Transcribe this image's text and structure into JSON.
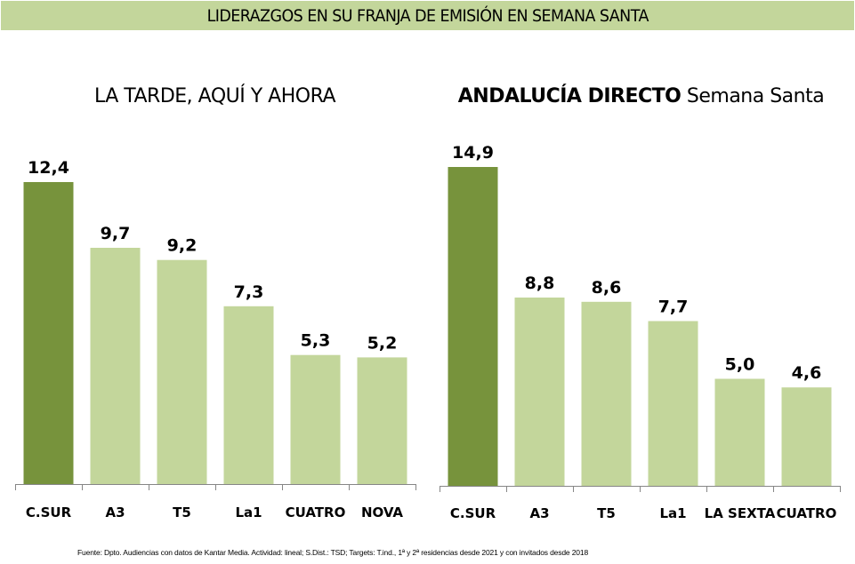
{
  "header": {
    "title": "LIDERAZGOS EN SU FRANJA DE EMISIÓN EN SEMANA SANTA"
  },
  "colors": {
    "banner": "#C3D69B",
    "highlight_bar": "#77933C",
    "other_bar": "#C3D69B",
    "axis": "#868686"
  },
  "chart_data": [
    {
      "type": "bar",
      "title": "LA TARDE, AQUÍ Y AHORA",
      "categories": [
        "C.SUR",
        "A3",
        "T5",
        "La1",
        "CUATRO",
        "NOVA"
      ],
      "values": [
        12.4,
        9.7,
        9.2,
        7.3,
        5.3,
        5.2
      ],
      "value_labels": [
        "12,4",
        "9,7",
        "9,2",
        "7,3",
        "5,3",
        "5,2"
      ],
      "highlight_index": 0,
      "xlabel": "",
      "ylabel": "",
      "ylim": [
        0,
        12.4
      ],
      "grid": false,
      "legend": "none"
    },
    {
      "type": "bar",
      "title": "ANDALUCÍA DIRECTO Semana Santa",
      "title_bold_part": "ANDALUCÍA DIRECTO",
      "title_regular_part": "Semana Santa",
      "categories": [
        "C.SUR",
        "A3",
        "T5",
        "La1",
        "LA SEXTA",
        "CUATRO"
      ],
      "values": [
        14.9,
        8.8,
        8.6,
        7.7,
        5.0,
        4.6
      ],
      "value_labels": [
        "14,9",
        "8,8",
        "8,6",
        "7,7",
        "5,0",
        "4,6"
      ],
      "highlight_index": 0,
      "xlabel": "",
      "ylabel": "",
      "ylim": [
        0,
        14.9
      ],
      "grid": false,
      "legend": "none"
    }
  ],
  "footer": {
    "source": "Fuente: Dpto. Audiencias con datos de Kantar Media. Actividad: lineal; S.Dist.: TSD; Targets: T.ind., 1ª y 2ª residencias desde 2021 y con invitados desde 2018"
  }
}
